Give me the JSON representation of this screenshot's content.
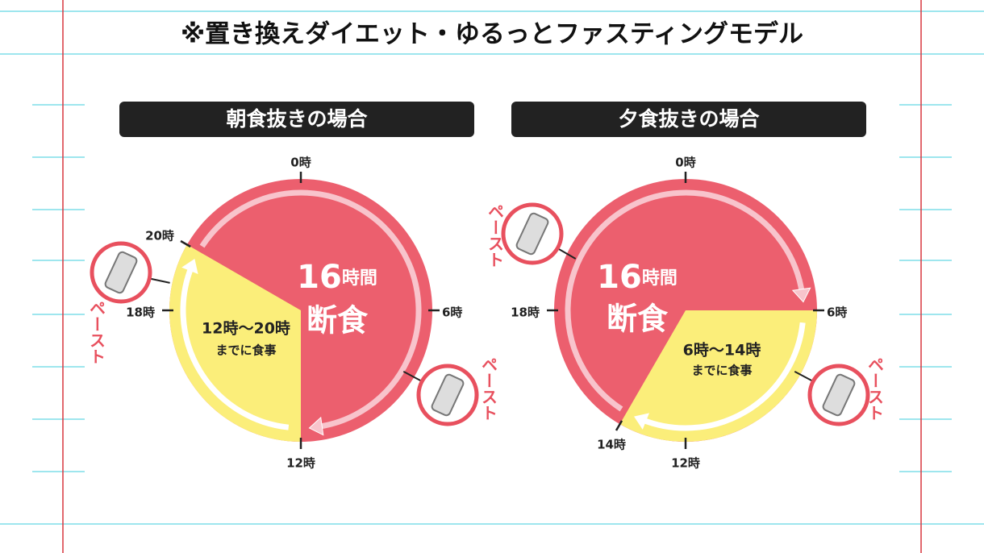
{
  "title": "※置き換えダイエット・ゆるっとファスティングモデル",
  "panels": [
    {
      "header": "朝食抜きの場合",
      "hours": [
        "0時",
        "6時",
        "12時",
        "18時",
        "20時"
      ],
      "fasting": {
        "number": "16",
        "unit": "時間",
        "label": "断食"
      },
      "meal": {
        "time": "12時〜20時",
        "note": "までに食事"
      },
      "paste_labels": [
        "ペースト",
        "ペースト"
      ]
    },
    {
      "header": "夕食抜きの場合",
      "hours": [
        "0時",
        "6時",
        "12時",
        "14時",
        "18時"
      ],
      "fasting": {
        "number": "16",
        "unit": "時間",
        "label": "断食"
      },
      "meal": {
        "time": "6時〜14時",
        "note": "までに食事"
      },
      "paste_labels": [
        "ペースト",
        "ペースト"
      ]
    }
  ]
}
